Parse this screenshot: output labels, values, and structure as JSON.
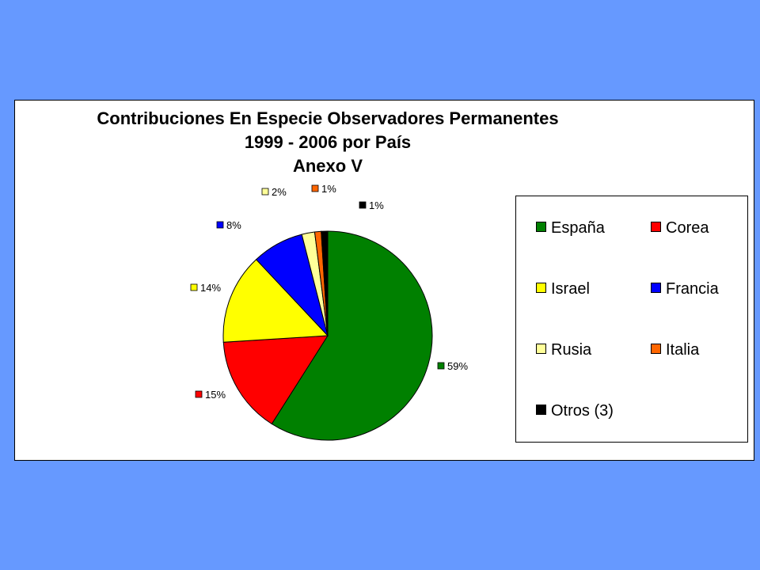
{
  "chart_data": {
    "type": "pie",
    "title": [
      "Contribuciones En Especie Observadores Permanentes",
      "1999 - 2006 por País",
      "Anexo V"
    ],
    "categories": [
      "España",
      "Corea",
      "Israel",
      "Francia",
      "Rusia",
      "Italia",
      "Otros (3)"
    ],
    "values": [
      59,
      15,
      14,
      8,
      2,
      1,
      1
    ],
    "labels": [
      "59%",
      "15%",
      "14%",
      "8%",
      "2%",
      "1%",
      "1%"
    ],
    "colors": [
      "#008000",
      "#ff0000",
      "#ffff00",
      "#0000ff",
      "#ffff99",
      "#ff6600",
      "#000000"
    ],
    "legend_position": "right"
  }
}
